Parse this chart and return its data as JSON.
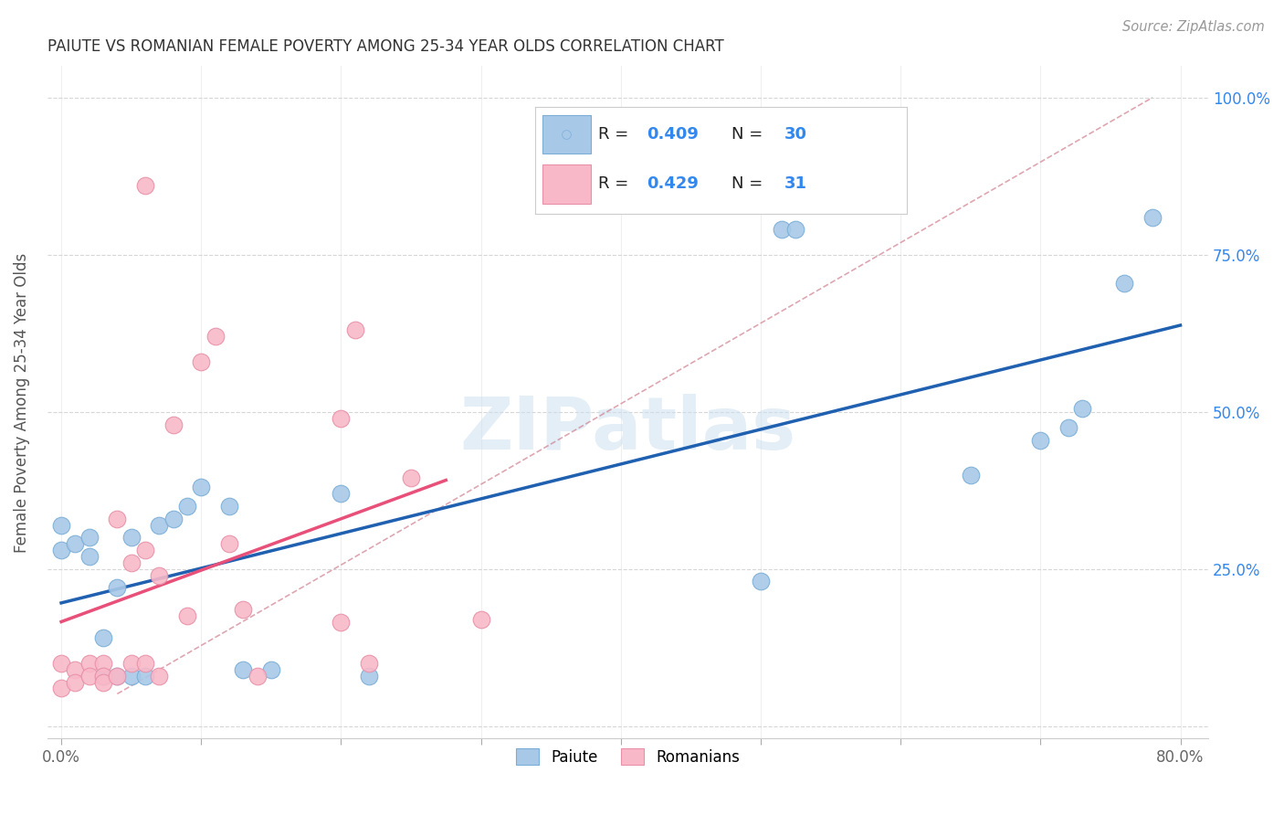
{
  "title": "PAIUTE VS ROMANIAN FEMALE POVERTY AMONG 25-34 YEAR OLDS CORRELATION CHART",
  "source": "Source: ZipAtlas.com",
  "ylabel": "Female Poverty Among 25-34 Year Olds",
  "xlim": [
    -0.01,
    0.82
  ],
  "ylim": [
    -0.02,
    1.05
  ],
  "paiute_color": "#a8c8e8",
  "paiute_edge_color": "#7aaed6",
  "romanian_color": "#f8b8c8",
  "romanian_edge_color": "#e890a8",
  "paiute_line_color": "#2060b0",
  "romanian_line_color": "#e8507a",
  "diagonal_color": "#e0a0b0",
  "paiute_R": 0.409,
  "paiute_N": 30,
  "romanian_R": 0.429,
  "romanian_N": 31,
  "watermark": "ZIPatlas",
  "paiute_x": [
    0.0,
    0.0,
    0.01,
    0.02,
    0.02,
    0.03,
    0.03,
    0.04,
    0.04,
    0.05,
    0.05,
    0.06,
    0.07,
    0.08,
    0.09,
    0.1,
    0.12,
    0.13,
    0.15,
    0.2,
    0.22,
    0.5,
    0.515,
    0.525,
    0.65,
    0.7,
    0.72,
    0.73,
    0.76,
    0.78
  ],
  "paiute_y": [
    0.32,
    0.28,
    0.29,
    0.27,
    0.3,
    0.14,
    0.08,
    0.22,
    0.08,
    0.08,
    0.3,
    0.08,
    0.32,
    0.33,
    0.35,
    0.38,
    0.35,
    0.09,
    0.09,
    0.37,
    0.08,
    0.23,
    0.79,
    0.79,
    0.4,
    0.455,
    0.475,
    0.505,
    0.705,
    0.81
  ],
  "romanian_x": [
    0.0,
    0.0,
    0.01,
    0.01,
    0.02,
    0.02,
    0.03,
    0.03,
    0.03,
    0.04,
    0.04,
    0.05,
    0.05,
    0.06,
    0.06,
    0.07,
    0.07,
    0.08,
    0.09,
    0.1,
    0.11,
    0.12,
    0.13,
    0.14,
    0.2,
    0.2,
    0.21,
    0.22,
    0.25,
    0.3,
    0.06
  ],
  "romanian_y": [
    0.1,
    0.06,
    0.09,
    0.07,
    0.1,
    0.08,
    0.1,
    0.08,
    0.07,
    0.08,
    0.33,
    0.1,
    0.26,
    0.1,
    0.28,
    0.08,
    0.24,
    0.48,
    0.175,
    0.58,
    0.62,
    0.29,
    0.185,
    0.08,
    0.165,
    0.49,
    0.63,
    0.1,
    0.395,
    0.17,
    0.86
  ],
  "paiute_line_x0": 0.0,
  "paiute_line_x1": 0.8,
  "romanian_line_x0": 0.0,
  "romanian_line_x1": 0.275
}
